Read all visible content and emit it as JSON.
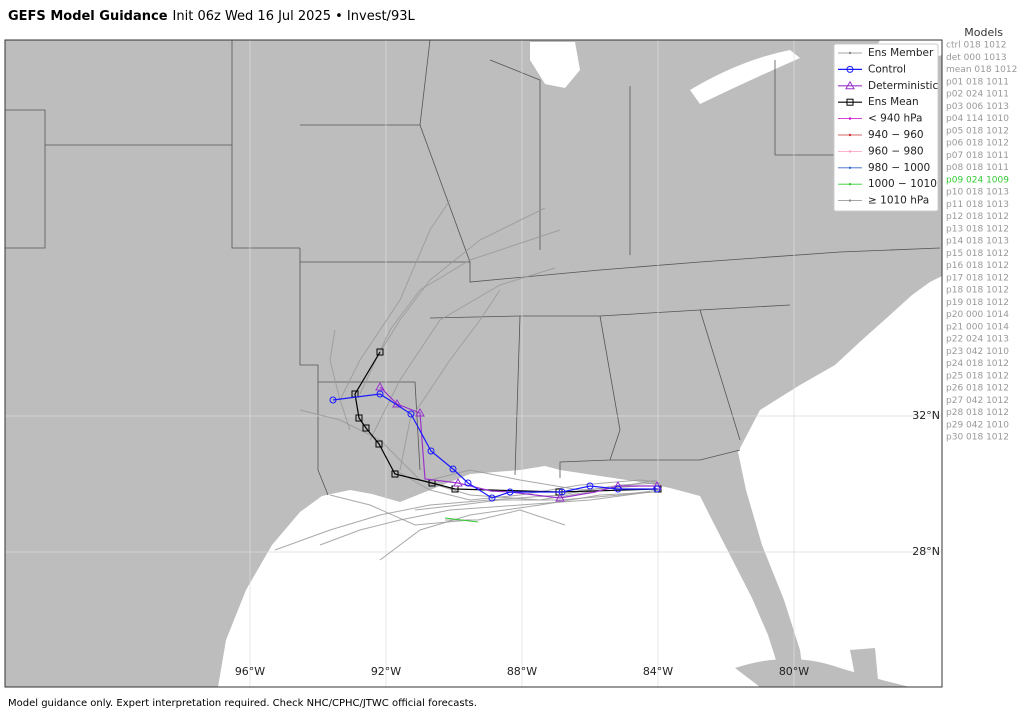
{
  "header": {
    "title": "GEFS Model Guidance",
    "subtitle": "Init 06z Wed 16 Jul 2025 • Invest/93L"
  },
  "legend": [
    {
      "label": "Ens Member",
      "color": "#888888",
      "marker": "dot"
    },
    {
      "label": "Control",
      "color": "#1a1aff",
      "marker": "circle"
    },
    {
      "label": "Deterministic",
      "color": "#9933cc",
      "marker": "triangle"
    },
    {
      "label": "Ens Mean",
      "color": "#000000",
      "marker": "square"
    },
    {
      "label": "< 940 hPa",
      "color": "#cc00cc",
      "marker": "dot"
    },
    {
      "label": "940 − 960",
      "color": "#cc3333",
      "marker": "dot"
    },
    {
      "label": "960 − 980",
      "color": "#ff99bb",
      "marker": "dot"
    },
    {
      "label": "980 − 1000",
      "color": "#3366cc",
      "marker": "dot"
    },
    {
      "label": "1000 − 1010",
      "color": "#33cc33",
      "marker": "dot"
    },
    {
      "label": "≥ 1010 hPa",
      "color": "#888888",
      "marker": "dot"
    }
  ],
  "models": {
    "title": "Models",
    "items": [
      {
        "text": "ctrl 018 1012",
        "color": "#999999"
      },
      {
        "text": "det 000 1013",
        "color": "#999999"
      },
      {
        "text": "mean 018 1012",
        "color": "#999999"
      },
      {
        "text": "p01 018 1011",
        "color": "#999999"
      },
      {
        "text": "p02 024 1011",
        "color": "#999999"
      },
      {
        "text": "p03 006 1013",
        "color": "#999999"
      },
      {
        "text": "p04 114 1010",
        "color": "#999999"
      },
      {
        "text": "p05 018 1012",
        "color": "#999999"
      },
      {
        "text": "p06 018 1012",
        "color": "#999999"
      },
      {
        "text": "p07 018 1011",
        "color": "#999999"
      },
      {
        "text": "p08 018 1011",
        "color": "#999999"
      },
      {
        "text": "p09 024 1009",
        "color": "#33cc33"
      },
      {
        "text": "p10 018 1013",
        "color": "#999999"
      },
      {
        "text": "p11 018 1013",
        "color": "#999999"
      },
      {
        "text": "p12 018 1012",
        "color": "#999999"
      },
      {
        "text": "p13 018 1012",
        "color": "#999999"
      },
      {
        "text": "p14 018 1013",
        "color": "#999999"
      },
      {
        "text": "p15 018 1012",
        "color": "#999999"
      },
      {
        "text": "p16 018 1012",
        "color": "#999999"
      },
      {
        "text": "p17 018 1012",
        "color": "#999999"
      },
      {
        "text": "p18 018 1012",
        "color": "#999999"
      },
      {
        "text": "p19 018 1012",
        "color": "#999999"
      },
      {
        "text": "p20 000 1014",
        "color": "#999999"
      },
      {
        "text": "p21 000 1014",
        "color": "#999999"
      },
      {
        "text": "p22 024 1013",
        "color": "#999999"
      },
      {
        "text": "p23 042 1010",
        "color": "#999999"
      },
      {
        "text": "p24 018 1012",
        "color": "#999999"
      },
      {
        "text": "p25 018 1012",
        "color": "#999999"
      },
      {
        "text": "p26 018 1012",
        "color": "#999999"
      },
      {
        "text": "p27 042 1012",
        "color": "#999999"
      },
      {
        "text": "p28 018 1012",
        "color": "#999999"
      },
      {
        "text": "p29 042 1010",
        "color": "#999999"
      },
      {
        "text": "p30 018 1012",
        "color": "#999999"
      }
    ]
  },
  "axes": {
    "lon_labels": [
      "96°W",
      "92°W",
      "88°W",
      "84°W",
      "80°W"
    ],
    "lat_labels": [
      "32°N",
      "28°N"
    ]
  },
  "footer": "Model guidance only. Expert interpretation required. Check NHC/CPHC/JTWC official forecasts."
}
